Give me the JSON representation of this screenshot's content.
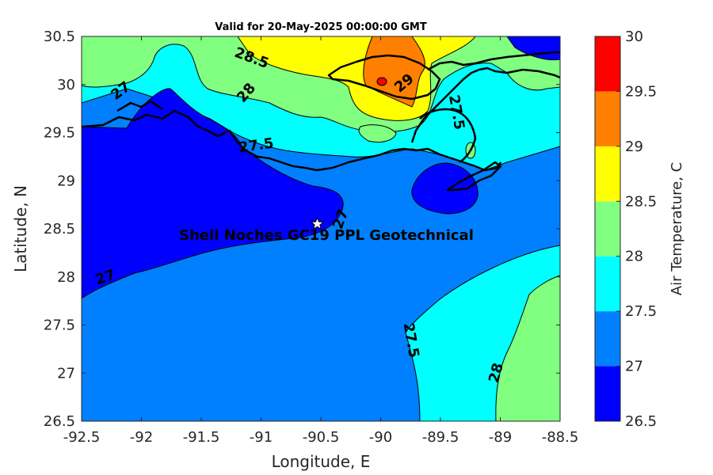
{
  "chart_data": {
    "type": "heatmap",
    "title": "Valid for 20-May-2025 00:00:00 GMT",
    "xlabel": "Longitude, E",
    "ylabel": "Latitude, N",
    "xlim": [
      -92.5,
      -88.5
    ],
    "ylim": [
      26.5,
      30.5
    ],
    "xticks": [
      "-92.5",
      "-92",
      "-91.5",
      "-91",
      "-90.5",
      "-90",
      "-89.5",
      "-89",
      "-88.5"
    ],
    "yticks": [
      "26.5",
      "27",
      "27.5",
      "28",
      "28.5",
      "29",
      "29.5",
      "30",
      "30.5"
    ],
    "colorbar": {
      "label": "Air Temperature, C",
      "levels": [
        26.5,
        27,
        27.5,
        28,
        28.5,
        29,
        29.5,
        30
      ],
      "ticklabels": [
        "26.5",
        "27",
        "27.5",
        "28",
        "28.5",
        "29",
        "29.5",
        "30"
      ],
      "colors": [
        "#0000ff",
        "#0080ff",
        "#00ffff",
        "#80ff80",
        "#ffff00",
        "#ff8000",
        "#ff0000",
        "#800000"
      ]
    },
    "contour_labels": [
      {
        "text": "27",
        "lon": -92.3,
        "lat": 27.99
      },
      {
        "text": "27",
        "lon": -92.17,
        "lat": 29.93
      },
      {
        "text": "27",
        "lon": -90.33,
        "lat": 28.6
      },
      {
        "text": "27.5",
        "lon": -91.04,
        "lat": 29.36
      },
      {
        "text": "27.5",
        "lon": -89.75,
        "lat": 27.34
      },
      {
        "text": "27.5",
        "lon": -89.37,
        "lat": 29.71
      },
      {
        "text": "28",
        "lon": -91.12,
        "lat": 29.91
      },
      {
        "text": "28",
        "lon": -89.03,
        "lat": 27.0
      },
      {
        "text": "28.5",
        "lon": -91.08,
        "lat": 30.27
      },
      {
        "text": "29",
        "lon": -89.8,
        "lat": 30.01
      }
    ],
    "station": {
      "label": "Shell Noches   GC19 PPL  Geotechnical",
      "lon": -90.53,
      "lat": 28.55
    }
  }
}
